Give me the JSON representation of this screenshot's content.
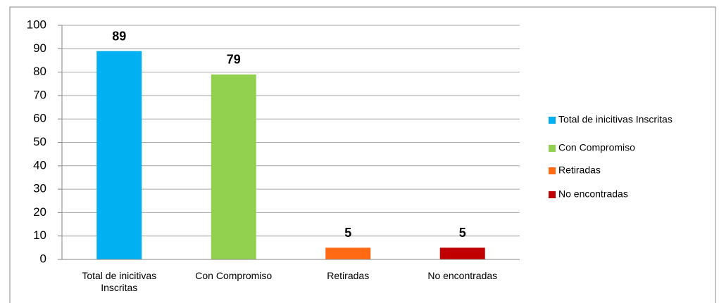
{
  "chart_data": {
    "type": "bar",
    "categories": [
      "Total de inicitivas Inscritas",
      "Con Compromiso",
      "Retiradas",
      "No encontradas"
    ],
    "values": [
      89,
      79,
      5,
      5
    ],
    "colors": [
      "#00b0f0",
      "#92d050",
      "#ff6a13",
      "#c00000"
    ],
    "ylim": [
      0,
      100
    ],
    "yticks": [
      0,
      10,
      20,
      30,
      40,
      50,
      60,
      70,
      80,
      90,
      100
    ],
    "grid": true,
    "legend": "right"
  }
}
